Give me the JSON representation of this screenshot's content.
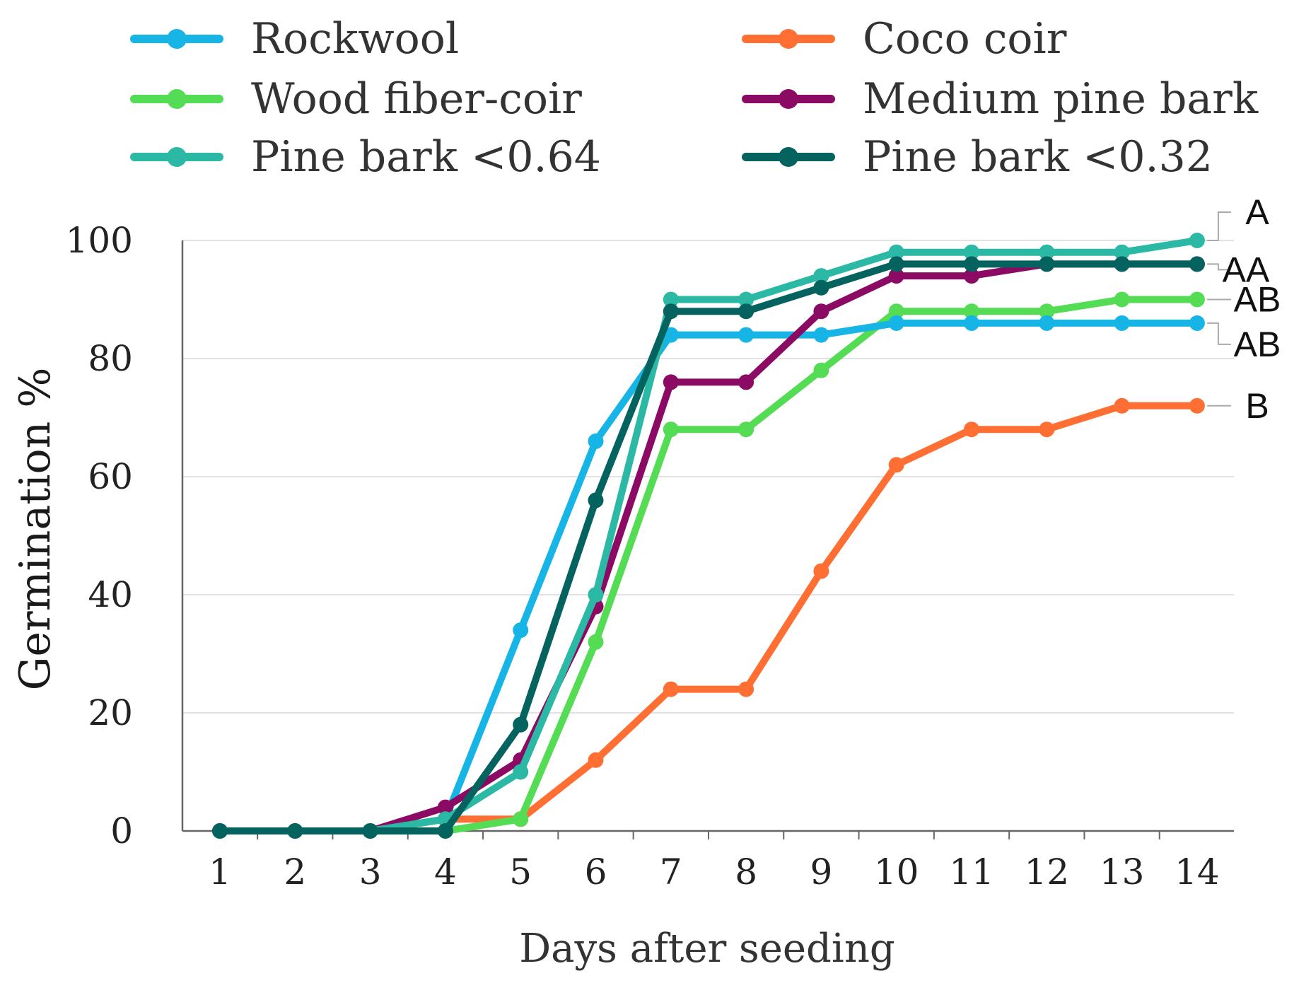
{
  "chart_data": {
    "type": "line",
    "title": "",
    "xlabel": "Days after seeding",
    "ylabel": "Germination %",
    "x": [
      1,
      2,
      3,
      4,
      5,
      6,
      7,
      8,
      9,
      10,
      11,
      12,
      13,
      14
    ],
    "xticks": [
      "1",
      "2",
      "3",
      "4",
      "5",
      "6",
      "7",
      "8",
      "9",
      "10",
      "11",
      "12",
      "13",
      "14"
    ],
    "ylim": [
      0,
      100
    ],
    "yticks": [
      "0",
      "20",
      "40",
      "60",
      "80",
      "100"
    ],
    "grid": true,
    "legend": "top",
    "series": [
      {
        "name": "Rockwool",
        "color": "#16b5e6",
        "values": [
          0,
          0,
          0,
          2,
          34,
          66,
          84,
          84,
          84,
          86,
          86,
          86,
          86,
          86
        ]
      },
      {
        "name": "Coco coir",
        "color": "#ff6f33",
        "values": [
          0,
          0,
          0,
          2,
          2,
          12,
          24,
          24,
          44,
          62,
          68,
          68,
          72,
          72
        ]
      },
      {
        "name": "Wood fiber-coir",
        "color": "#55dc55",
        "values": [
          0,
          0,
          0,
          0,
          2,
          32,
          68,
          68,
          78,
          88,
          88,
          88,
          90,
          90
        ]
      },
      {
        "name": "Medium pine bark",
        "color": "#8b0a63",
        "values": [
          0,
          0,
          0,
          4,
          12,
          38,
          76,
          76,
          88,
          94,
          94,
          96,
          96,
          96
        ]
      },
      {
        "name": "Pine bark <0.64",
        "color": "#2bb9a5",
        "values": [
          0,
          0,
          0,
          2,
          10,
          40,
          90,
          90,
          94,
          98,
          98,
          98,
          98,
          100
        ]
      },
      {
        "name": "Pine bark <0.32",
        "color": "#05635f",
        "values": [
          0,
          0,
          0,
          0,
          18,
          56,
          88,
          88,
          92,
          96,
          96,
          96,
          96,
          96
        ]
      }
    ],
    "annotations": [
      {
        "text": "A",
        "y": 100
      },
      {
        "text": "AA",
        "y": 96
      },
      {
        "text": "AB",
        "y": 90
      },
      {
        "text": "AB",
        "y": 86
      },
      {
        "text": "B",
        "y": 72
      }
    ]
  }
}
